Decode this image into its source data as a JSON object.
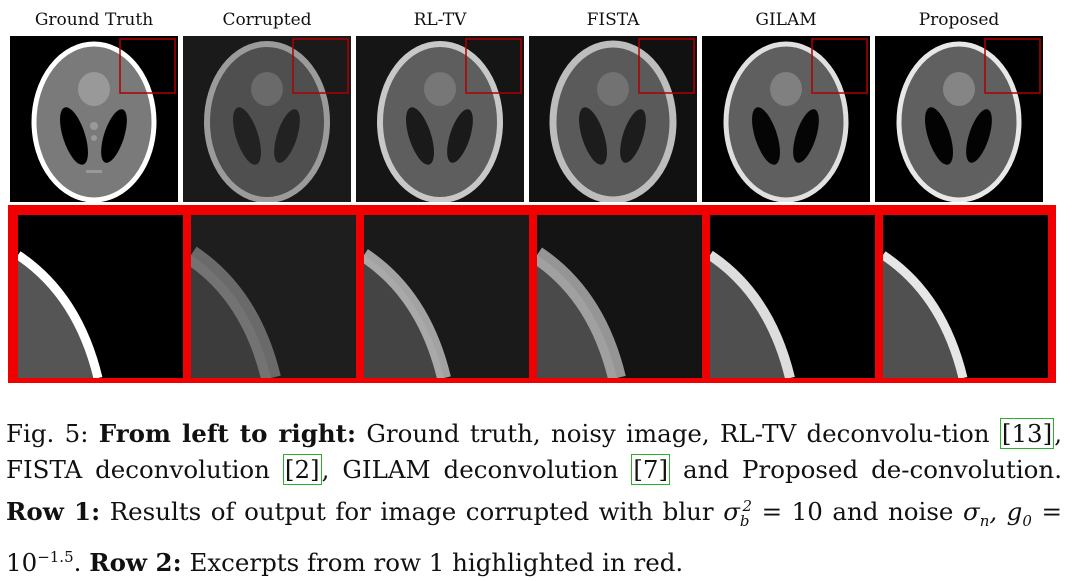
{
  "columns": [
    {
      "title": "Ground Truth"
    },
    {
      "title": "Corrupted"
    },
    {
      "title": "RL-TV"
    },
    {
      "title": "FISTA"
    },
    {
      "title": "GILAM"
    },
    {
      "title": "Proposed"
    }
  ],
  "caption": {
    "fig": "Fig. 5:",
    "lead_bold": "From left to right:",
    "text1": "Ground truth, noisy image, RL-TV deconvolu-tion",
    "ref1": "13",
    "text2": ", FISTA deconvolution",
    "ref2": "2",
    "text3": ", GILAM deconvolution",
    "ref3": "7",
    "text4": "and Proposed de-convolution.",
    "row1_bold": "Row 1:",
    "row1_text": "Results of output for image corrupted with blur",
    "blur_expr": "σ",
    "blur_rest": "= 10",
    "noise_text": "and noise",
    "noise_expr": "σ",
    "noise_rest": ", g",
    "noise_val": "= 10",
    "noise_exp": "−1.5",
    "row2_bold": "Row 2:",
    "row2_text": "Excerpts from row 1 highlighted in red."
  },
  "colors": {
    "highlight": "#f00000",
    "ref_box": "#2bb02b"
  }
}
